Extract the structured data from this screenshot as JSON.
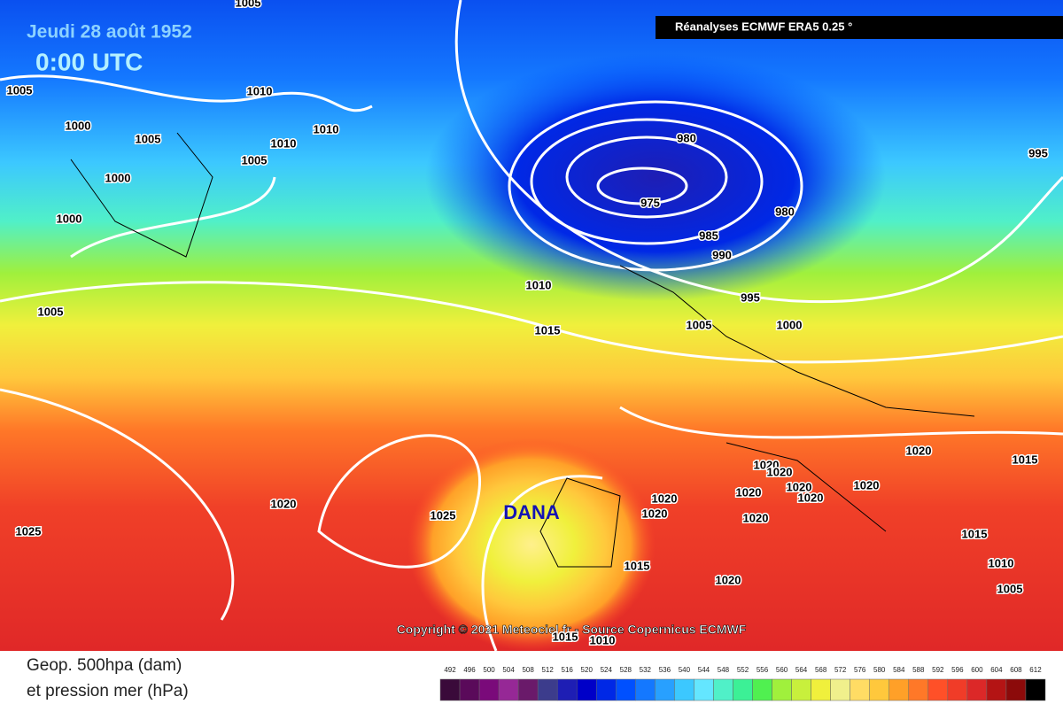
{
  "header": {
    "date": "Jeudi 28 août 1952",
    "time": "0:00 UTC",
    "source": "Réanalyses ECMWF ERA5 0.25 °"
  },
  "map": {
    "feature_label": "DANA",
    "copyright": "Copyright © 2021 Meteociel.fr - Source Copernicus ECMWF",
    "isobar_labels": [
      "1005",
      "1005",
      "1000",
      "1005",
      "1010",
      "1010",
      "1010",
      "1005",
      "1000",
      "1000",
      "980",
      "975",
      "980",
      "985",
      "990",
      "995",
      "995",
      "1010",
      "1005",
      "1015",
      "1005",
      "1000",
      "1020",
      "1020",
      "1020",
      "1020",
      "1020",
      "1020",
      "1020",
      "1020",
      "1020",
      "1020",
      "1020",
      "1025",
      "1025",
      "1015",
      "1015",
      "1010",
      "1005",
      "1015",
      "1020",
      "1015",
      "1010"
    ]
  },
  "legend": {
    "title_line1": "Geop. 500hpa (dam)",
    "title_line2": "et pression mer (hPa)",
    "values": [
      492,
      496,
      500,
      504,
      508,
      512,
      516,
      520,
      524,
      528,
      532,
      536,
      540,
      544,
      548,
      552,
      556,
      560,
      564,
      568,
      572,
      576,
      580,
      584,
      588,
      592,
      596,
      600,
      604,
      608,
      612
    ],
    "colors": [
      "#3a0a3a",
      "#5a0a5a",
      "#7a0a7a",
      "#962896",
      "#6a1a6a",
      "#3c3c8c",
      "#1e1eb4",
      "#0000c8",
      "#0028e6",
      "#0050ff",
      "#1478ff",
      "#28a0ff",
      "#3cc8ff",
      "#64e6ff",
      "#50f0c8",
      "#3cf096",
      "#50f050",
      "#a0f03c",
      "#c8f03c",
      "#f0f03c",
      "#f0f08c",
      "#ffdc64",
      "#ffc83c",
      "#ffa028",
      "#ff7828",
      "#ff5028",
      "#f03c28",
      "#dc2828",
      "#b41414",
      "#8c0a0a",
      "#000000"
    ]
  }
}
